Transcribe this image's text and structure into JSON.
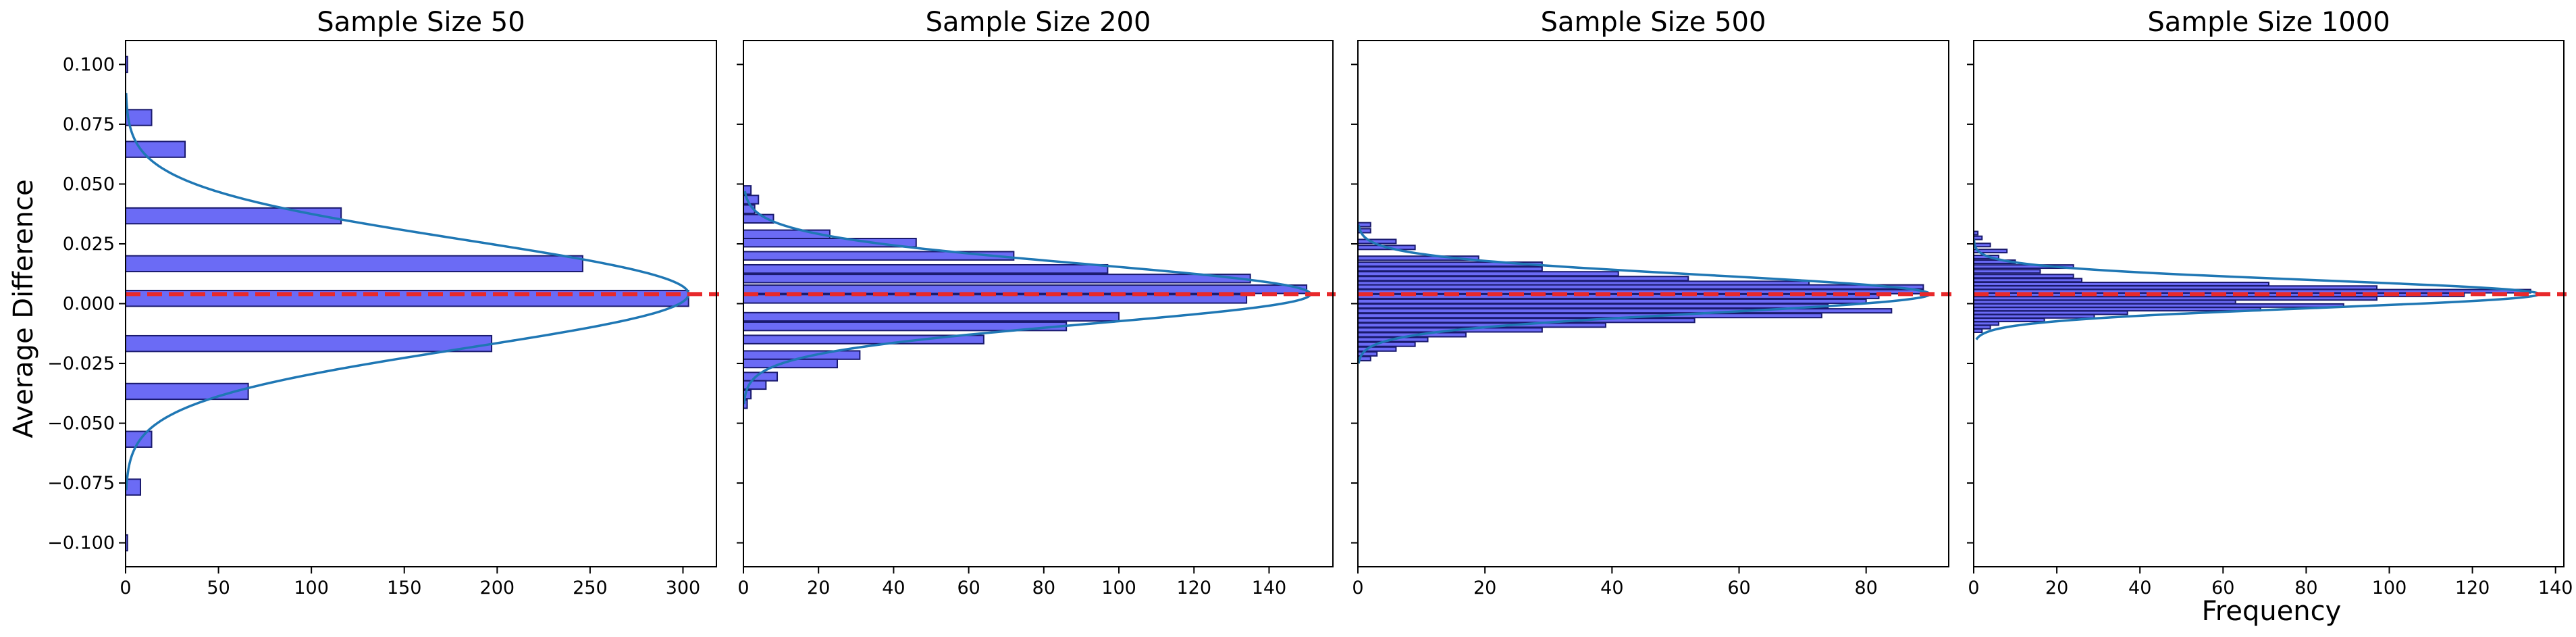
{
  "figure": {
    "ylabel": "Average Difference",
    "xlabel": "Frequency",
    "colors": {
      "bar_fill": "#6b6bf5",
      "bar_edge": "#1a1a6e",
      "curve": "#1f77b4",
      "reference_line": "#e8292b"
    }
  },
  "chart_data": [
    {
      "type": "bar",
      "orientation": "horizontal",
      "title": "Sample Size 50",
      "xlim": [
        0,
        318
      ],
      "ylim": [
        -0.11,
        0.11
      ],
      "xticks": [
        0,
        50,
        100,
        150,
        200,
        250,
        300
      ],
      "yticks": [
        0.1,
        0.075,
        0.05,
        0.025,
        0.0,
        -0.025,
        -0.05,
        -0.075,
        -0.1
      ],
      "ytick_labels": [
        "0.100",
        "0.075",
        "0.050",
        "0.025",
        "0.000",
        "−0.025",
        "−0.050",
        "−0.075",
        "−0.100"
      ],
      "bin_height": 0.0066,
      "bins": [
        {
          "y": 0.1,
          "count": 1
        },
        {
          "y": 0.0778,
          "count": 14
        },
        {
          "y": 0.0645,
          "count": 32
        },
        {
          "y": 0.0367,
          "count": 116
        },
        {
          "y": 0.0167,
          "count": 246
        },
        {
          "y": 0.0022,
          "count": 303
        },
        {
          "y": -0.0167,
          "count": 197
        },
        {
          "y": -0.0367,
          "count": 66
        },
        {
          "y": -0.0567,
          "count": 14
        },
        {
          "y": -0.0767,
          "count": 8
        },
        {
          "y": -0.1,
          "count": 1
        }
      ],
      "curve": {
        "mean": 0.004,
        "sd": 0.0225,
        "peak": 303,
        "y_range": [
          -0.078,
          0.088
        ]
      },
      "reference_y": 0.004
    },
    {
      "type": "bar",
      "orientation": "horizontal",
      "title": "Sample Size 200",
      "xlim": [
        0,
        157
      ],
      "ylim": [
        -0.11,
        0.11
      ],
      "xticks": [
        0,
        20,
        40,
        60,
        80,
        100,
        120,
        140
      ],
      "yticks": [
        0.1,
        0.075,
        0.05,
        0.025,
        0.0,
        -0.025,
        -0.05,
        -0.075,
        -0.1
      ],
      "ytick_labels": [],
      "bin_height": 0.0035,
      "bins": [
        {
          "y": 0.0475,
          "count": 2
        },
        {
          "y": 0.0435,
          "count": 4
        },
        {
          "y": 0.0395,
          "count": 3
        },
        {
          "y": 0.0355,
          "count": 8
        },
        {
          "y": 0.029,
          "count": 23
        },
        {
          "y": 0.0255,
          "count": 46
        },
        {
          "y": 0.02,
          "count": 72
        },
        {
          "y": 0.0145,
          "count": 97
        },
        {
          "y": 0.0105,
          "count": 135
        },
        {
          "y": 0.006,
          "count": 150
        },
        {
          "y": 0.002,
          "count": 134
        },
        {
          "y": -0.0055,
          "count": 100
        },
        {
          "y": -0.0095,
          "count": 86
        },
        {
          "y": -0.015,
          "count": 64
        },
        {
          "y": -0.0215,
          "count": 31
        },
        {
          "y": -0.025,
          "count": 25
        },
        {
          "y": -0.0305,
          "count": 9
        },
        {
          "y": -0.034,
          "count": 6
        },
        {
          "y": -0.038,
          "count": 2
        },
        {
          "y": -0.042,
          "count": 1
        }
      ],
      "curve": {
        "mean": 0.004,
        "sd": 0.0125,
        "peak": 151,
        "y_range": [
          -0.042,
          0.047
        ]
      },
      "reference_y": 0.004
    },
    {
      "type": "bar",
      "orientation": "horizontal",
      "title": "Sample Size 500",
      "xlim": [
        0,
        93
      ],
      "ylim": [
        -0.11,
        0.11
      ],
      "xticks": [
        0,
        20,
        40,
        60,
        80
      ],
      "yticks": [
        0.1,
        0.075,
        0.05,
        0.025,
        0.0,
        -0.025,
        -0.05,
        -0.075,
        -0.1
      ],
      "ytick_labels": [],
      "bin_height": 0.0017,
      "bins": [
        {
          "y": 0.033,
          "count": 2
        },
        {
          "y": 0.0305,
          "count": 2
        },
        {
          "y": 0.026,
          "count": 6
        },
        {
          "y": 0.0235,
          "count": 9
        },
        {
          "y": 0.019,
          "count": 19
        },
        {
          "y": 0.0165,
          "count": 29
        },
        {
          "y": 0.0145,
          "count": 29
        },
        {
          "y": 0.0125,
          "count": 41
        },
        {
          "y": 0.0105,
          "count": 52
        },
        {
          "y": 0.0085,
          "count": 71
        },
        {
          "y": 0.007,
          "count": 89
        },
        {
          "y": 0.005,
          "count": 89
        },
        {
          "y": 0.003,
          "count": 82
        },
        {
          "y": 0.001,
          "count": 80
        },
        {
          "y": -0.001,
          "count": 74
        },
        {
          "y": -0.003,
          "count": 84
        },
        {
          "y": -0.005,
          "count": 73
        },
        {
          "y": -0.007,
          "count": 53
        },
        {
          "y": -0.009,
          "count": 39
        },
        {
          "y": -0.011,
          "count": 29
        },
        {
          "y": -0.013,
          "count": 17
        },
        {
          "y": -0.015,
          "count": 11
        },
        {
          "y": -0.017,
          "count": 9
        },
        {
          "y": -0.019,
          "count": 6
        },
        {
          "y": -0.021,
          "count": 3
        },
        {
          "y": -0.023,
          "count": 2
        }
      ],
      "curve": {
        "mean": 0.004,
        "sd": 0.008,
        "peak": 90,
        "y_range": [
          -0.025,
          0.033
        ]
      },
      "reference_y": 0.004
    },
    {
      "type": "bar",
      "orientation": "horizontal",
      "title": "Sample Size 1000",
      "xlim": [
        0,
        142
      ],
      "ylim": [
        -0.11,
        0.11
      ],
      "xticks": [
        0,
        20,
        40,
        60,
        80,
        100,
        120,
        140
      ],
      "yticks": [
        0.1,
        0.075,
        0.05,
        0.025,
        0.0,
        -0.025,
        -0.05,
        -0.075,
        -0.1
      ],
      "ytick_labels": [],
      "bin_height": 0.0014,
      "bins": [
        {
          "y": 0.0295,
          "count": 1
        },
        {
          "y": 0.0275,
          "count": 2
        },
        {
          "y": 0.0245,
          "count": 4
        },
        {
          "y": 0.022,
          "count": 8
        },
        {
          "y": 0.0195,
          "count": 6
        },
        {
          "y": 0.0175,
          "count": 10
        },
        {
          "y": 0.0155,
          "count": 24
        },
        {
          "y": 0.0135,
          "count": 16
        },
        {
          "y": 0.0115,
          "count": 24
        },
        {
          "y": 0.0098,
          "count": 26
        },
        {
          "y": 0.0082,
          "count": 71
        },
        {
          "y": 0.0067,
          "count": 97
        },
        {
          "y": 0.0052,
          "count": 134
        },
        {
          "y": 0.0037,
          "count": 118
        },
        {
          "y": 0.0022,
          "count": 97
        },
        {
          "y": 0.0007,
          "count": 63
        },
        {
          "y": -0.0008,
          "count": 89
        },
        {
          "y": -0.0023,
          "count": 69
        },
        {
          "y": -0.0038,
          "count": 37
        },
        {
          "y": -0.0053,
          "count": 29
        },
        {
          "y": -0.0068,
          "count": 17
        },
        {
          "y": -0.0083,
          "count": 6
        },
        {
          "y": -0.0098,
          "count": 4
        },
        {
          "y": -0.0113,
          "count": 2
        }
      ],
      "curve": {
        "mean": 0.004,
        "sd": 0.0058,
        "peak": 136,
        "y_range": [
          -0.015,
          0.027
        ]
      },
      "reference_y": 0.004
    }
  ]
}
